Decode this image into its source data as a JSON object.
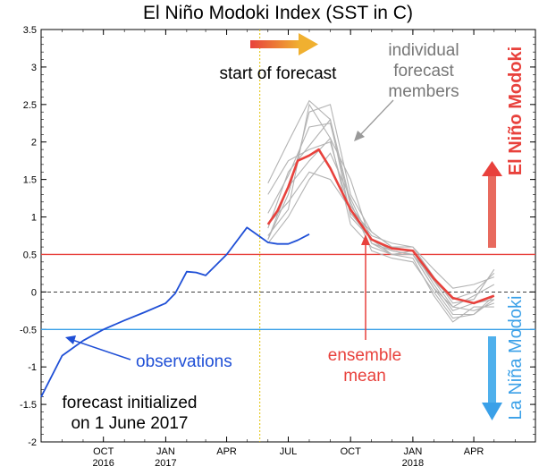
{
  "chart_data": {
    "type": "line",
    "title": "El Niño Modoki Index (SST in C)",
    "ylim": [
      -2,
      3.5
    ],
    "yticks": [
      -2,
      -1.5,
      -1,
      -0.5,
      0,
      0.5,
      1,
      1.5,
      2,
      2.5,
      3,
      3.5
    ],
    "ytick_labels": [
      "-2",
      "-1.5",
      "-1",
      "-0.5",
      "0",
      "0.5",
      "1",
      "1.5",
      "2",
      "2.5",
      "3",
      "3.5"
    ],
    "xlim": [
      "2016-07-01",
      "2018-07-01"
    ],
    "xticks": [
      {
        "date": "2016-10-01",
        "label": "OCT",
        "year": "2016"
      },
      {
        "date": "2017-01-01",
        "label": "JAN",
        "year": "2017"
      },
      {
        "date": "2017-04-01",
        "label": "APR",
        "year": ""
      },
      {
        "date": "2017-07-01",
        "label": "JUL",
        "year": ""
      },
      {
        "date": "2017-10-01",
        "label": "OCT",
        "year": ""
      },
      {
        "date": "2018-01-01",
        "label": "JAN",
        "year": "2018"
      },
      {
        "date": "2018-04-01",
        "label": "APR",
        "year": ""
      }
    ],
    "thresholds": [
      {
        "value": 0.5,
        "color": "#e8413c",
        "style": "solid"
      },
      {
        "value": -0.5,
        "color": "#3aa0e8",
        "style": "solid"
      },
      {
        "value": 0,
        "color": "#000000",
        "style": "dashed"
      }
    ],
    "forecast_start": "2017-05-20",
    "series": [
      {
        "name": "observations",
        "color": "#1f4fd6",
        "points": [
          [
            "2016-07-01",
            -1.4
          ],
          [
            "2016-08-01",
            -0.85
          ],
          [
            "2016-09-01",
            -0.65
          ],
          [
            "2016-10-01",
            -0.5
          ],
          [
            "2016-11-01",
            -0.38
          ],
          [
            "2016-12-01",
            -0.27
          ],
          [
            "2017-01-01",
            -0.15
          ],
          [
            "2017-01-15",
            -0.02
          ],
          [
            "2017-02-01",
            0.27
          ],
          [
            "2017-02-15",
            0.26
          ],
          [
            "2017-03-01",
            0.22
          ],
          [
            "2017-04-01",
            0.5
          ],
          [
            "2017-05-01",
            0.86
          ],
          [
            "2017-06-01",
            0.66
          ],
          [
            "2017-06-15",
            0.64
          ],
          [
            "2017-07-01",
            0.64
          ],
          [
            "2017-07-15",
            0.69
          ],
          [
            "2017-08-01",
            0.77
          ]
        ]
      },
      {
        "name": "ensemble mean",
        "color": "#e8413c",
        "points": [
          [
            "2017-06-01",
            0.9
          ],
          [
            "2017-06-15",
            1.08
          ],
          [
            "2017-07-01",
            1.4
          ],
          [
            "2017-07-15",
            1.75
          ],
          [
            "2017-08-01",
            1.82
          ],
          [
            "2017-08-15",
            1.9
          ],
          [
            "2017-09-01",
            1.65
          ],
          [
            "2017-10-01",
            1.1
          ],
          [
            "2017-11-01",
            0.7
          ],
          [
            "2017-12-01",
            0.58
          ],
          [
            "2018-01-01",
            0.55
          ],
          [
            "2018-02-01",
            0.18
          ],
          [
            "2018-03-01",
            -0.08
          ],
          [
            "2018-04-01",
            -0.15
          ],
          [
            "2018-05-01",
            -0.05
          ]
        ]
      }
    ],
    "members": [
      [
        [
          "2017-06-01",
          1.45
        ],
        [
          "2017-07-01",
          2.0
        ],
        [
          "2017-08-01",
          2.55
        ],
        [
          "2017-09-01",
          2.3
        ],
        [
          "2017-10-01",
          1.0
        ],
        [
          "2017-11-01",
          0.7
        ],
        [
          "2017-12-01",
          0.55
        ],
        [
          "2018-01-01",
          0.5
        ],
        [
          "2018-02-01",
          0.15
        ],
        [
          "2018-03-01",
          -0.1
        ],
        [
          "2018-04-01",
          0.0
        ],
        [
          "2018-05-01",
          0.25
        ]
      ],
      [
        [
          "2017-06-01",
          0.7
        ],
        [
          "2017-07-01",
          1.3
        ],
        [
          "2017-08-01",
          2.4
        ],
        [
          "2017-09-01",
          2.5
        ],
        [
          "2017-10-01",
          1.3
        ],
        [
          "2017-11-01",
          0.8
        ],
        [
          "2017-12-01",
          0.6
        ],
        [
          "2018-01-01",
          0.6
        ],
        [
          "2018-02-01",
          0.2
        ],
        [
          "2018-03-01",
          -0.15
        ],
        [
          "2018-04-01",
          -0.1
        ],
        [
          "2018-05-01",
          0.3
        ]
      ],
      [
        [
          "2017-06-01",
          1.05
        ],
        [
          "2017-07-01",
          1.55
        ],
        [
          "2017-08-01",
          2.2
        ],
        [
          "2017-09-01",
          2.25
        ],
        [
          "2017-10-01",
          1.15
        ],
        [
          "2017-11-01",
          0.75
        ],
        [
          "2017-12-01",
          0.65
        ],
        [
          "2018-01-01",
          0.6
        ],
        [
          "2018-02-01",
          0.3
        ],
        [
          "2018-03-01",
          0.05
        ],
        [
          "2018-04-01",
          0.1
        ],
        [
          "2018-05-01",
          0.2
        ]
      ],
      [
        [
          "2017-06-01",
          0.75
        ],
        [
          "2017-07-01",
          1.1
        ],
        [
          "2017-08-01",
          2.5
        ],
        [
          "2017-09-01",
          2.05
        ],
        [
          "2017-10-01",
          1.5
        ],
        [
          "2017-11-01",
          0.65
        ],
        [
          "2017-12-01",
          0.55
        ],
        [
          "2018-01-01",
          0.5
        ],
        [
          "2018-02-01",
          0.05
        ],
        [
          "2018-03-01",
          -0.3
        ],
        [
          "2018-04-01",
          -0.3
        ],
        [
          "2018-05-01",
          -0.05
        ]
      ],
      [
        [
          "2017-06-01",
          0.85
        ],
        [
          "2017-07-01",
          1.6
        ],
        [
          "2017-08-01",
          1.95
        ],
        [
          "2017-09-01",
          2.3
        ],
        [
          "2017-10-01",
          1.2
        ],
        [
          "2017-11-01",
          0.55
        ],
        [
          "2017-12-01",
          0.45
        ],
        [
          "2018-01-01",
          0.4
        ],
        [
          "2018-02-01",
          0.0
        ],
        [
          "2018-03-01",
          -0.35
        ],
        [
          "2018-04-01",
          -0.3
        ],
        [
          "2018-05-01",
          -0.1
        ]
      ],
      [
        [
          "2017-06-01",
          0.7
        ],
        [
          "2017-07-01",
          1.4
        ],
        [
          "2017-08-01",
          1.75
        ],
        [
          "2017-09-01",
          2.05
        ],
        [
          "2017-10-01",
          0.9
        ],
        [
          "2017-11-01",
          0.6
        ],
        [
          "2017-12-01",
          0.5
        ],
        [
          "2018-01-01",
          0.55
        ],
        [
          "2018-02-01",
          0.15
        ],
        [
          "2018-03-01",
          -0.2
        ],
        [
          "2018-04-01",
          -0.05
        ],
        [
          "2018-05-01",
          0.1
        ]
      ],
      [
        [
          "2017-06-01",
          1.3
        ],
        [
          "2017-07-01",
          1.75
        ],
        [
          "2017-08-01",
          1.9
        ],
        [
          "2017-09-01",
          2.0
        ],
        [
          "2017-10-01",
          1.05
        ],
        [
          "2017-11-01",
          0.7
        ],
        [
          "2017-12-01",
          0.5
        ],
        [
          "2018-01-01",
          0.45
        ],
        [
          "2018-02-01",
          -0.05
        ],
        [
          "2018-03-01",
          -0.4
        ],
        [
          "2018-04-01",
          -0.2
        ],
        [
          "2018-05-01",
          -0.2
        ]
      ],
      [
        [
          "2017-06-01",
          0.9
        ],
        [
          "2017-07-01",
          1.2
        ],
        [
          "2017-08-01",
          1.6
        ],
        [
          "2017-09-01",
          1.5
        ],
        [
          "2017-10-01",
          1.1
        ],
        [
          "2017-11-01",
          0.8
        ],
        [
          "2017-12-01",
          0.6
        ],
        [
          "2018-01-01",
          0.55
        ],
        [
          "2018-02-01",
          0.1
        ],
        [
          "2018-03-01",
          -0.25
        ],
        [
          "2018-04-01",
          -0.15
        ],
        [
          "2018-05-01",
          -0.1
        ]
      ],
      [
        [
          "2017-06-01",
          0.65
        ],
        [
          "2017-07-01",
          1.0
        ],
        [
          "2017-08-01",
          1.5
        ],
        [
          "2017-09-01",
          1.85
        ],
        [
          "2017-10-01",
          1.25
        ],
        [
          "2017-11-01",
          0.65
        ],
        [
          "2017-12-01",
          0.5
        ],
        [
          "2018-01-01",
          0.5
        ],
        [
          "2018-02-01",
          0.05
        ],
        [
          "2018-03-01",
          -0.2
        ],
        [
          "2018-04-01",
          -0.25
        ],
        [
          "2018-05-01",
          -0.15
        ]
      ]
    ],
    "members_color": "#b3b3b3",
    "annotations": {
      "start_of_forecast": "start of forecast",
      "members_line1": "individual",
      "members_line2": "forecast",
      "members_line3": "members",
      "ensemble_line1": "ensemble",
      "ensemble_line2": "mean",
      "observations": "observations",
      "initialized_line1": "forecast initialized",
      "initialized_line2": "on 1 June 2017",
      "el_nino_modoki": "El Niño Modoki",
      "la_nina_modoki": "La Niña Modoki"
    },
    "colors": {
      "observations": "#1f4fd6",
      "ensemble": "#e8413c",
      "el_nino": "#e8413c",
      "la_nina": "#3aa0e8",
      "forecast_arrow": "#f0a830",
      "members_text": "#777777",
      "forecast_start_line": "#e0c200"
    }
  }
}
